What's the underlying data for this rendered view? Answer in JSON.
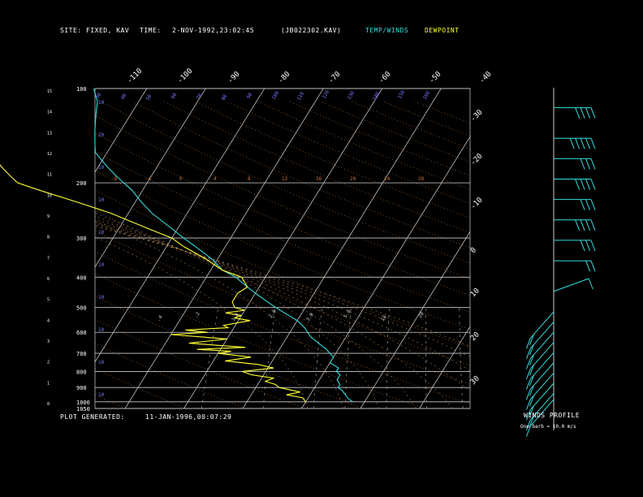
{
  "header": {
    "site_label": "SITE:",
    "site_value": "FIXED, KAV",
    "time_label": "TIME:",
    "time_value": "2-NOV-1992,23:02:45",
    "file_value": "(JB022302.KAV)",
    "temp_legend": "TEMP/WINDS",
    "dew_legend": "DEWPOINT"
  },
  "footer": {
    "generated_label": "PLOT GENERATED:",
    "generated_value": "11-JAN-1996,00:07:29"
  },
  "wind_panel": {
    "title": "WINDS PROFILE",
    "subtitle": "One barb = 10.0 m/s"
  },
  "chart_data": {
    "type": "line",
    "title": "",
    "colors": {
      "temperature": "#33dddd",
      "dewpoint": "#ffff33",
      "isotherm": "#ffffff",
      "dry_adiabat": "#cc7733",
      "moist_adiabat": "#ddaa66",
      "mixing_ratio": "#7777ff",
      "wind": "#33dddd"
    },
    "pressure_ticks": [
      "100",
      "200",
      "300",
      "400",
      "500",
      "600",
      "700",
      "800",
      "900",
      "1000",
      "1050"
    ],
    "pressure_levels_hpa": [
      100,
      200,
      300,
      400,
      500,
      600,
      700,
      800,
      900,
      1000,
      1050
    ],
    "height_ticks_km": [
      "0",
      "1",
      "2",
      "3",
      "4",
      "5",
      "6",
      "7",
      "8",
      "9",
      "10",
      "11",
      "12",
      "13",
      "14",
      "15"
    ],
    "top_temp_ticks": [
      "-110",
      "-100",
      "-90",
      "-80",
      "-70",
      "-60",
      "-50",
      "-40"
    ],
    "right_temp_ticks": [
      "-30",
      "-20",
      "-10",
      "0",
      "10",
      "20",
      "30"
    ],
    "mixing_ratio_labels": [
      ".4",
      ".2",
      "1.0",
      "2.0",
      "3.0",
      "5.0",
      "10",
      "20"
    ],
    "dry_adiabat_labels": [
      "-8",
      "-4",
      "0",
      "4",
      "8",
      "12",
      "16",
      "20",
      "24",
      "28"
    ],
    "upper_isotherm_labels": [
      "30",
      "40",
      "50",
      "60",
      "70",
      "80",
      "90",
      "100",
      "110",
      "120",
      "130",
      "140",
      "150",
      "160"
    ],
    "temperature": {
      "pressure": [
        1000,
        980,
        950,
        920,
        900,
        880,
        850,
        820,
        800,
        780,
        750,
        720,
        700,
        680,
        650,
        620,
        600,
        580,
        550,
        520,
        500,
        480,
        450,
        420,
        400,
        380,
        350,
        320,
        300,
        280,
        250,
        230,
        210,
        200,
        190,
        180,
        170,
        160,
        150,
        140,
        130,
        120,
        110,
        105,
        100
      ],
      "temp_c": [
        -2,
        -3,
        -4,
        -5,
        -6,
        -6,
        -7,
        -7,
        -8,
        -8,
        -10,
        -10,
        -11,
        -12,
        -14,
        -16,
        -17,
        -18,
        -20,
        -23,
        -25,
        -27,
        -30,
        -33,
        -35,
        -38,
        -41,
        -45,
        -48,
        -51,
        -56,
        -59,
        -62,
        -64,
        -66,
        -68,
        -70,
        -72,
        -73,
        -74,
        -75,
        -76,
        -77,
        -78,
        -79
      ]
    },
    "dewpoint": {
      "pressure": [
        1000,
        970,
        950,
        930,
        900,
        880,
        860,
        840,
        820,
        800,
        780,
        760,
        740,
        720,
        700,
        690,
        680,
        670,
        650,
        630,
        610,
        600,
        590,
        580,
        570,
        560,
        550,
        540,
        530,
        520,
        510,
        500,
        480,
        450,
        430,
        400,
        380,
        350,
        320,
        300,
        280,
        250,
        230,
        210,
        200,
        190,
        180,
        160,
        140,
        120,
        110,
        105,
        100
      ],
      "temp_c": [
        -10,
        -11,
        -14,
        -12,
        -16,
        -17,
        -19,
        -18,
        -22,
        -24,
        -19,
        -22,
        -28,
        -24,
        -30,
        -28,
        -34,
        -26,
        -36,
        -30,
        -40,
        -34,
        -38,
        -31,
        -32,
        -30,
        -28,
        -31,
        -30,
        -33,
        -30,
        -32,
        -33,
        -33,
        -32,
        -34,
        -38,
        -42,
        -47,
        -50,
        -55,
        -63,
        -70,
        -78,
        -82,
        -84,
        -86,
        -90,
        -93,
        -95,
        -96,
        -97,
        -97
      ]
    },
    "winds": [
      {
        "height_km": 14.5,
        "speed_ms": 40,
        "dir": 270
      },
      {
        "height_km": 13.0,
        "speed_ms": 45,
        "dir": 270
      },
      {
        "height_km": 12.0,
        "speed_ms": 30,
        "dir": 270
      },
      {
        "height_km": 11.0,
        "speed_ms": 35,
        "dir": 270
      },
      {
        "height_km": 10.0,
        "speed_ms": 30,
        "dir": 270
      },
      {
        "height_km": 9.0,
        "speed_ms": 35,
        "dir": 270
      },
      {
        "height_km": 8.0,
        "speed_ms": 30,
        "dir": 270
      },
      {
        "height_km": 7.0,
        "speed_ms": 20,
        "dir": 270
      },
      {
        "height_km": 5.5,
        "speed_ms": 10,
        "dir": 300
      },
      {
        "height_km": 4.5,
        "speed_ms": 15,
        "dir": 240
      },
      {
        "height_km": 4.0,
        "speed_ms": 20,
        "dir": 250
      },
      {
        "height_km": 3.5,
        "speed_ms": 15,
        "dir": 235
      },
      {
        "height_km": 3.0,
        "speed_ms": 20,
        "dir": 240
      },
      {
        "height_km": 2.5,
        "speed_ms": 20,
        "dir": 230
      },
      {
        "height_km": 2.0,
        "speed_ms": 20,
        "dir": 235
      },
      {
        "height_km": 1.5,
        "speed_ms": 20,
        "dir": 230
      },
      {
        "height_km": 1.0,
        "speed_ms": 15,
        "dir": 225
      },
      {
        "height_km": 0.5,
        "speed_ms": 15,
        "dir": 215
      },
      {
        "height_km": 0.2,
        "speed_ms": 10,
        "dir": 205
      }
    ]
  }
}
